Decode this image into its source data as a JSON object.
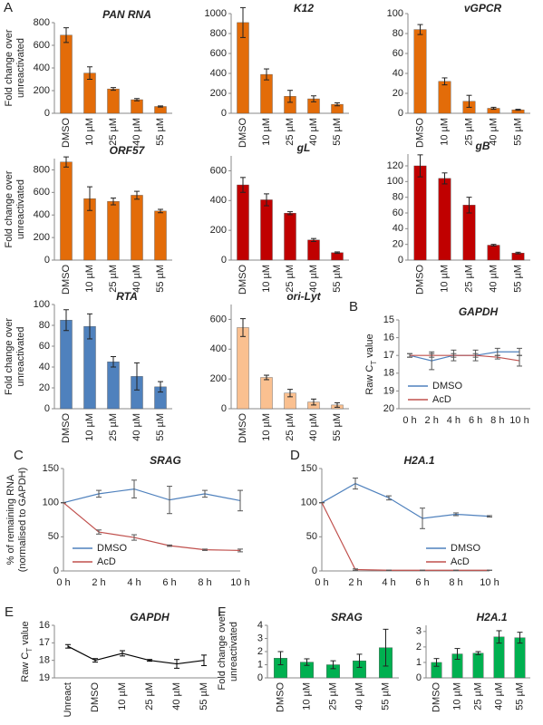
{
  "chart_data": [
    {
      "type": "bar",
      "panel": "A",
      "title": "PAN RNA",
      "ylabel": [
        "Fold change over",
        "unreactivated"
      ],
      "categories": [
        "DMSO",
        "10 µM",
        "25 µM",
        "40 µM",
        "55 µM"
      ],
      "values": [
        690,
        355,
        215,
        120,
        60
      ],
      "errors": [
        65,
        55,
        12,
        10,
        5
      ],
      "color": "#e36c09",
      "ylim": [
        0,
        800
      ],
      "yticks": [
        0,
        200,
        400,
        600,
        800
      ]
    },
    {
      "type": "bar",
      "title": "K12",
      "categories": [
        "DMSO",
        "10 µM",
        "25 µM",
        "40 µM",
        "55 µM"
      ],
      "values": [
        910,
        390,
        170,
        145,
        90
      ],
      "errors": [
        150,
        55,
        60,
        30,
        15
      ],
      "color": "#e36c09",
      "ylim": [
        0,
        1000
      ],
      "yticks": [
        0,
        200,
        400,
        600,
        800,
        1000
      ]
    },
    {
      "type": "bar",
      "title": "vGPCR",
      "categories": [
        "DMSO",
        "10 µM",
        "25 µM",
        "40 µM",
        "55 µM"
      ],
      "values": [
        84,
        32,
        12,
        5,
        3.5
      ],
      "errors": [
        5,
        3.5,
        6,
        1,
        0.5
      ],
      "color": "#e36c09",
      "ylim": [
        0,
        100
      ],
      "yticks": [
        0,
        20,
        40,
        60,
        80,
        100
      ]
    },
    {
      "type": "bar",
      "title": "ORF57",
      "ylabel": [
        "Fold change over",
        "unreactivated"
      ],
      "categories": [
        "DMSO",
        "10 µM",
        "25 µM",
        "40 µM",
        "55 µM"
      ],
      "values": [
        870,
        545,
        520,
        575,
        435
      ],
      "errors": [
        45,
        105,
        30,
        35,
        15
      ],
      "color": "#e36c09",
      "ylim": [
        0,
        900
      ],
      "yticks": [
        0,
        200,
        400,
        600,
        800
      ]
    },
    {
      "type": "bar",
      "title": "gL",
      "categories": [
        "DMSO",
        "10 µM",
        "25 µM",
        "40 µM",
        "55 µM"
      ],
      "values": [
        505,
        405,
        315,
        135,
        50
      ],
      "errors": [
        50,
        40,
        10,
        10,
        5
      ],
      "color": "#c00000",
      "ylim": [
        0,
        700
      ],
      "yticks": [
        0,
        200,
        400,
        600
      ]
    },
    {
      "type": "bar",
      "title": "gB",
      "categories": [
        "DMSO",
        "10 µM",
        "25 µM",
        "40 µM",
        "55 µM"
      ],
      "values": [
        120,
        104,
        70,
        19,
        9
      ],
      "errors": [
        14,
        7,
        10,
        1,
        1
      ],
      "color": "#c00000",
      "ylim": [
        0,
        135
      ],
      "yticks": [
        0,
        20,
        40,
        60,
        80,
        100,
        120
      ]
    },
    {
      "type": "bar",
      "title": "RTA",
      "ylabel": [
        "Fold change over",
        "unreactivated"
      ],
      "categories": [
        "DMSO",
        "10 µM",
        "25 µM",
        "40 µM",
        "55 µM"
      ],
      "values": [
        85,
        79,
        45,
        31,
        21
      ],
      "errors": [
        10,
        12,
        5,
        13,
        5
      ],
      "color": "#4f81bd",
      "ylim": [
        0,
        100
      ],
      "yticks": [
        0,
        20,
        40,
        60,
        80,
        100
      ]
    },
    {
      "type": "bar",
      "title": "ori-Lyt",
      "categories": [
        "DMSO",
        "10 µM",
        "25 µM",
        "40 µM",
        "55 µM"
      ],
      "values": [
        545,
        210,
        105,
        45,
        25
      ],
      "errors": [
        60,
        15,
        25,
        20,
        15
      ],
      "color": "#fac090",
      "ylim": [
        0,
        700
      ],
      "yticks": [
        0,
        200,
        400,
        600
      ]
    },
    {
      "type": "line",
      "panel": "B",
      "title": "GAPDH",
      "ylabel_ct": {
        "main": "Raw C",
        "sub": "T",
        "tail": " value"
      },
      "categories": [
        "0 h",
        "2 h",
        "4 h",
        "6 h",
        "8 h",
        "10 h"
      ],
      "inverted": true,
      "ylim": [
        15,
        20
      ],
      "yticks": [
        15,
        16,
        17,
        18,
        19,
        20
      ],
      "legend": "lower left",
      "series": [
        {
          "name": "DMSO",
          "color": "#4f81bd",
          "values": [
            17.0,
            17.3,
            17.0,
            17.0,
            16.8,
            16.8
          ],
          "errors": [
            0.1,
            0.5,
            0.3,
            0.3,
            0.2,
            0.2
          ]
        },
        {
          "name": "AcD",
          "color": "#c0504d",
          "values": [
            17.0,
            17.0,
            17.0,
            17.0,
            17.1,
            17.3
          ],
          "errors": [
            0.1,
            0.1,
            0.1,
            0.1,
            0.1,
            0.3
          ]
        }
      ]
    },
    {
      "type": "line",
      "panel": "C",
      "title": "SRAG",
      "ylabel": [
        "% of remaining RNA",
        "(normalised to GAPDH)"
      ],
      "categories": [
        "0 h",
        "2 h",
        "4 h",
        "6 h",
        "8 h",
        "10 h"
      ],
      "ylim": [
        0,
        150
      ],
      "yticks": [
        0,
        50,
        100,
        150
      ],
      "legend": "lower left",
      "series": [
        {
          "name": "DMSO",
          "color": "#4f81bd",
          "values": [
            100,
            113,
            120,
            104,
            113,
            103
          ],
          "errors": [
            0,
            5,
            13,
            20,
            5,
            15
          ]
        },
        {
          "name": "AcD",
          "color": "#c0504d",
          "values": [
            100,
            57,
            49,
            37,
            31,
            30
          ],
          "errors": [
            0,
            3,
            4,
            1,
            1,
            2
          ]
        }
      ]
    },
    {
      "type": "line",
      "panel": "D",
      "title": "H2A.1",
      "categories": [
        "0 h",
        "2 h",
        "4 h",
        "6 h",
        "8 h",
        "10 h"
      ],
      "ylim": [
        0,
        150
      ],
      "yticks": [
        0,
        50,
        100,
        150
      ],
      "legend": "lower right",
      "series": [
        {
          "name": "DMSO",
          "color": "#4f81bd",
          "values": [
            100,
            128,
            107,
            77,
            83,
            80
          ],
          "errors": [
            0,
            8,
            3,
            15,
            2,
            1
          ]
        },
        {
          "name": "AcD",
          "color": "#c0504d",
          "values": [
            100,
            2,
            1,
            1,
            1,
            1
          ],
          "errors": [
            0,
            1,
            0,
            0,
            0,
            0
          ]
        }
      ]
    },
    {
      "type": "line",
      "panel": "E",
      "title": "GAPDH",
      "ylabel_ct": {
        "main": "Raw C",
        "sub": "T",
        "tail": " value"
      },
      "categories": [
        "Unreact",
        "DMSO",
        "10 µM",
        "25 µM",
        "40 µM",
        "55 µM"
      ],
      "inverted": true,
      "ylim": [
        16,
        19
      ],
      "yticks": [
        16,
        17,
        18,
        19
      ],
      "color": "#000000",
      "values": [
        17.2,
        18.0,
        17.6,
        18.0,
        18.2,
        18.0
      ],
      "errors": [
        0.1,
        0.1,
        0.15,
        0.05,
        0.25,
        0.3
      ]
    },
    {
      "type": "bar",
      "panel": "F",
      "title": "SRAG",
      "ylabel": [
        "Fold change over",
        "unreactivated"
      ],
      "categories": [
        "DMSO",
        "10 µM",
        "25 µM",
        "40 µM",
        "55 µM"
      ],
      "values": [
        1.5,
        1.2,
        1.0,
        1.3,
        2.3
      ],
      "errors": [
        0.5,
        0.25,
        0.3,
        0.5,
        1.4
      ],
      "color": "#00b050",
      "ylim": [
        0,
        4
      ],
      "yticks": [
        0,
        1,
        2,
        3,
        4
      ]
    },
    {
      "type": "bar",
      "title": "H2A.1",
      "categories": [
        "DMSO",
        "10 µM",
        "25 µM",
        "40 µM",
        "55 µM"
      ],
      "values": [
        1.0,
        1.55,
        1.6,
        2.65,
        2.6
      ],
      "errors": [
        0.25,
        0.35,
        0.1,
        0.4,
        0.35
      ],
      "color": "#00b050",
      "ylim": [
        0,
        3.4
      ],
      "yticks": [
        0,
        1,
        2,
        3
      ]
    }
  ]
}
